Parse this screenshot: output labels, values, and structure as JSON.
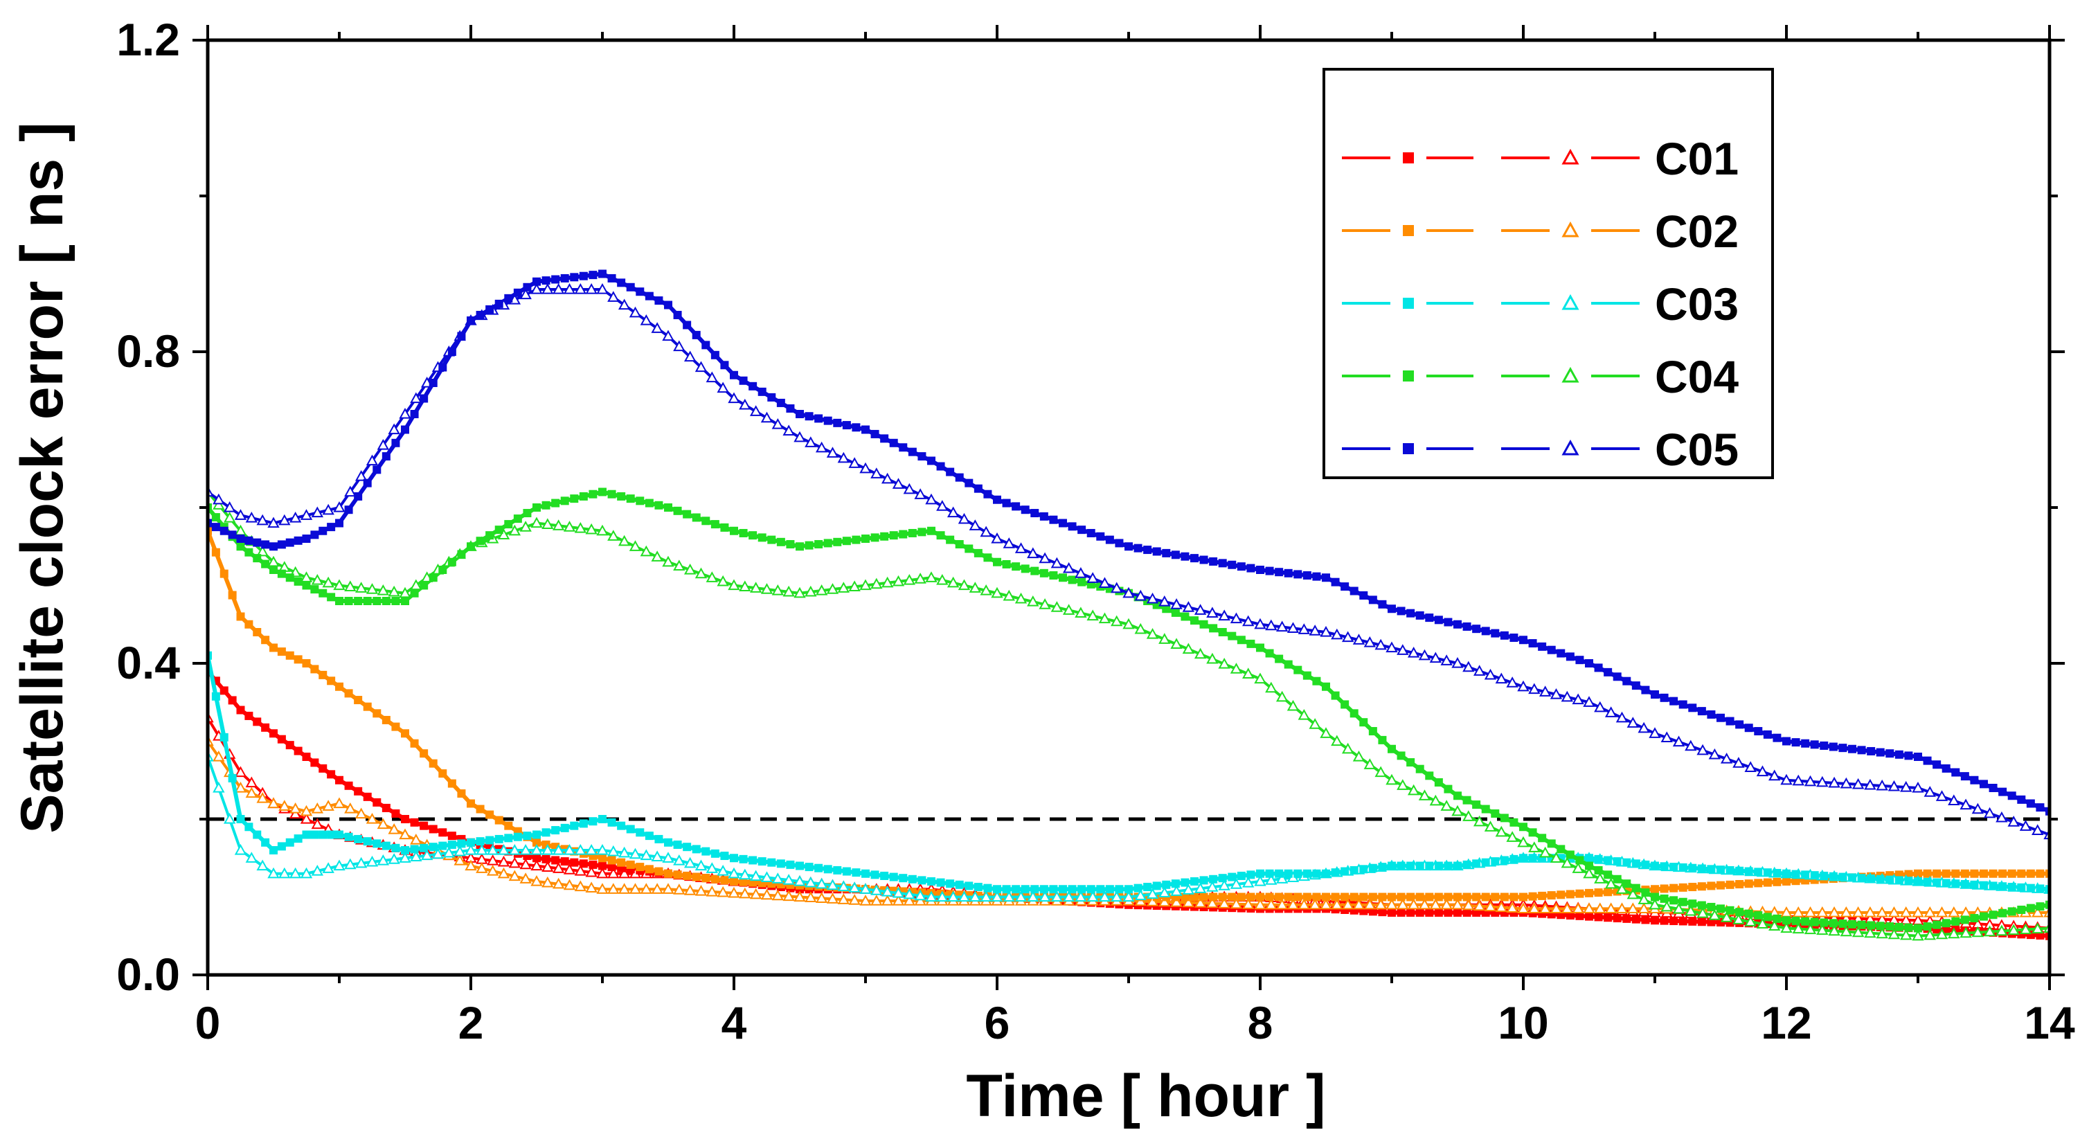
{
  "chart_data": {
    "type": "line",
    "title": "",
    "xlabel": "Time [ hour ]",
    "ylabel": "Satellite clock error [ ns ]",
    "xlim": [
      0,
      14
    ],
    "ylim": [
      0,
      1.2
    ],
    "x_ticks": [
      0,
      2,
      4,
      6,
      8,
      10,
      12,
      14
    ],
    "x_tick_labels": [
      "0",
      "2",
      "4",
      "6",
      "8",
      "10",
      "12",
      "14"
    ],
    "y_ticks": [
      0,
      0.4,
      0.8,
      1.2
    ],
    "y_tick_labels": [
      "0.0",
      "0.4",
      "0.8",
      "1.2"
    ],
    "reference_line": {
      "y": 0.2,
      "style": "dashed",
      "color": "#000000"
    },
    "legend": {
      "placement": "top-right",
      "marker_descriptions": [
        "solid square",
        "open triangle"
      ]
    },
    "x": [
      0,
      0.25,
      0.5,
      0.75,
      1,
      1.5,
      2,
      2.5,
      3,
      3.5,
      4,
      4.5,
      5,
      5.5,
      6,
      7,
      8,
      8.5,
      9,
      9.5,
      10,
      10.5,
      11,
      12,
      13,
      14
    ],
    "series": [
      {
        "name": "C01",
        "color": "#ff0000",
        "filled": [
          0.39,
          0.34,
          0.31,
          0.28,
          0.25,
          0.2,
          0.17,
          0.15,
          0.14,
          0.13,
          0.12,
          0.11,
          0.11,
          0.1,
          0.1,
          0.09,
          0.085,
          0.085,
          0.08,
          0.08,
          0.08,
          0.075,
          0.07,
          0.065,
          0.06,
          0.05
        ],
        "open": [
          0.33,
          0.26,
          0.22,
          0.2,
          0.18,
          0.16,
          0.15,
          0.14,
          0.13,
          0.13,
          0.12,
          0.12,
          0.11,
          0.11,
          0.1,
          0.1,
          0.1,
          0.095,
          0.09,
          0.09,
          0.09,
          0.085,
          0.08,
          0.075,
          0.07,
          0.06
        ]
      },
      {
        "name": "C02",
        "color": "#ff8c00",
        "filled": [
          0.57,
          0.46,
          0.42,
          0.4,
          0.37,
          0.31,
          0.22,
          0.17,
          0.15,
          0.13,
          0.12,
          0.115,
          0.11,
          0.105,
          0.1,
          0.1,
          0.1,
          0.1,
          0.1,
          0.1,
          0.1,
          0.105,
          0.11,
          0.12,
          0.13,
          0.13
        ],
        "open": [
          0.3,
          0.24,
          0.22,
          0.21,
          0.22,
          0.18,
          0.14,
          0.12,
          0.11,
          0.11,
          0.105,
          0.1,
          0.095,
          0.095,
          0.095,
          0.095,
          0.09,
          0.09,
          0.09,
          0.09,
          0.085,
          0.085,
          0.085,
          0.08,
          0.08,
          0.08
        ]
      },
      {
        "name": "C03",
        "color": "#00e5e5",
        "filled": [
          0.41,
          0.2,
          0.16,
          0.18,
          0.18,
          0.16,
          0.17,
          0.18,
          0.2,
          0.17,
          0.15,
          0.14,
          0.13,
          0.12,
          0.11,
          0.11,
          0.13,
          0.13,
          0.14,
          0.14,
          0.15,
          0.15,
          0.14,
          0.13,
          0.12,
          0.11
        ],
        "open": [
          0.28,
          0.16,
          0.13,
          0.13,
          0.14,
          0.15,
          0.16,
          0.16,
          0.16,
          0.15,
          0.13,
          0.12,
          0.11,
          0.1,
          0.1,
          0.1,
          0.12,
          0.13,
          0.14,
          0.14,
          0.15,
          0.15,
          0.14,
          0.13,
          0.12,
          0.11
        ]
      },
      {
        "name": "C04",
        "color": "#22dd22",
        "filled": [
          0.6,
          0.55,
          0.52,
          0.5,
          0.48,
          0.48,
          0.55,
          0.6,
          0.62,
          0.6,
          0.57,
          0.55,
          0.56,
          0.57,
          0.53,
          0.49,
          0.42,
          0.37,
          0.29,
          0.23,
          0.19,
          0.14,
          0.1,
          0.07,
          0.06,
          0.09
        ],
        "open": [
          0.62,
          0.57,
          0.53,
          0.51,
          0.5,
          0.49,
          0.55,
          0.58,
          0.57,
          0.53,
          0.5,
          0.49,
          0.5,
          0.51,
          0.49,
          0.45,
          0.38,
          0.31,
          0.25,
          0.21,
          0.17,
          0.13,
          0.09,
          0.06,
          0.05,
          0.06
        ]
      },
      {
        "name": "C05",
        "color": "#0a0ad6",
        "filled": [
          0.58,
          0.56,
          0.55,
          0.56,
          0.58,
          0.7,
          0.84,
          0.89,
          0.9,
          0.86,
          0.77,
          0.72,
          0.7,
          0.66,
          0.61,
          0.55,
          0.52,
          0.51,
          0.47,
          0.45,
          0.43,
          0.4,
          0.36,
          0.3,
          0.28,
          0.21
        ],
        "open": [
          0.62,
          0.59,
          0.58,
          0.59,
          0.6,
          0.72,
          0.84,
          0.88,
          0.88,
          0.82,
          0.74,
          0.69,
          0.65,
          0.61,
          0.56,
          0.49,
          0.45,
          0.44,
          0.42,
          0.4,
          0.37,
          0.35,
          0.31,
          0.25,
          0.24,
          0.18
        ]
      }
    ]
  }
}
